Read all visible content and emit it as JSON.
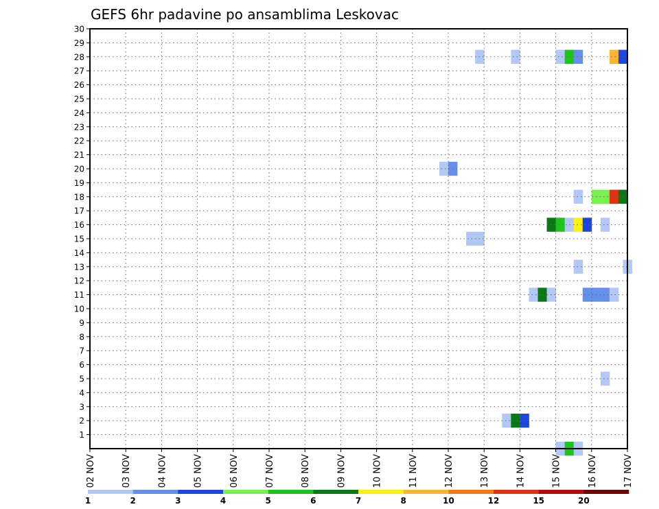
{
  "chart_data": {
    "type": "heatmap",
    "title": "GEFS 6hr padavine po ansamblima Leskovac",
    "xlabel": "",
    "ylabel": "",
    "x_tick_labels": [
      "02 NOV",
      "03 NOV",
      "04 NOV",
      "05 NOV",
      "06 NOV",
      "07 NOV",
      "08 NOV",
      "09 NOV",
      "10 NOV",
      "11 NOV",
      "12 NOV",
      "13 NOV",
      "14 NOV",
      "15 NOV",
      "16 NOV",
      "17 NOV"
    ],
    "y_ticks": [
      1,
      2,
      3,
      4,
      5,
      6,
      7,
      8,
      9,
      10,
      11,
      12,
      13,
      14,
      15,
      16,
      17,
      18,
      19,
      20,
      21,
      22,
      23,
      24,
      25,
      26,
      27,
      28,
      29,
      30
    ],
    "x_range_days": [
      0,
      15
    ],
    "y_range": [
      0,
      30
    ],
    "grid": true,
    "legend_position": "bottom",
    "colorbar": {
      "labels": [
        "1",
        "2",
        "3",
        "4",
        "5",
        "6",
        "7",
        "8",
        "10",
        "12",
        "15",
        "20"
      ],
      "colors": [
        "#b4c8f5",
        "#6490eb",
        "#1e46dc",
        "#78f050",
        "#1ec31e",
        "#0a7814",
        "#faf014",
        "#fab432",
        "#fa7814",
        "#e13214",
        "#b40a0a",
        "#6e0505"
      ]
    },
    "cells": [
      {
        "member": 28,
        "t": 10.75,
        "c": 0
      },
      {
        "member": 28,
        "t": 11.75,
        "c": 0
      },
      {
        "member": 28,
        "t": 13.0,
        "c": 0
      },
      {
        "member": 28,
        "t": 13.25,
        "c": 4
      },
      {
        "member": 28,
        "t": 13.5,
        "c": 1
      },
      {
        "member": 28,
        "t": 14.5,
        "c": 7
      },
      {
        "member": 28,
        "t": 14.75,
        "c": 2
      },
      {
        "member": 20,
        "t": 9.75,
        "c": 0
      },
      {
        "member": 20,
        "t": 10.0,
        "c": 1
      },
      {
        "member": 18,
        "t": 13.5,
        "c": 0
      },
      {
        "member": 18,
        "t": 14.0,
        "c": 3
      },
      {
        "member": 18,
        "t": 14.25,
        "c": 3
      },
      {
        "member": 18,
        "t": 14.5,
        "c": 9
      },
      {
        "member": 18,
        "t": 14.75,
        "c": 5
      },
      {
        "member": 16,
        "t": 12.75,
        "c": 5
      },
      {
        "member": 16,
        "t": 13.0,
        "c": 4
      },
      {
        "member": 16,
        "t": 13.25,
        "c": 0
      },
      {
        "member": 16,
        "t": 13.5,
        "c": 6
      },
      {
        "member": 16,
        "t": 13.75,
        "c": 2
      },
      {
        "member": 16,
        "t": 14.25,
        "c": 0
      },
      {
        "member": 15,
        "t": 10.5,
        "c": 0
      },
      {
        "member": 15,
        "t": 10.75,
        "c": 0
      },
      {
        "member": 13,
        "t": 13.5,
        "c": 0
      },
      {
        "member": 13,
        "t": 14.875,
        "c": 0
      },
      {
        "member": 11,
        "t": 12.25,
        "c": 0
      },
      {
        "member": 11,
        "t": 12.5,
        "c": 5
      },
      {
        "member": 11,
        "t": 12.75,
        "c": 0
      },
      {
        "member": 11,
        "t": 13.75,
        "c": 1
      },
      {
        "member": 11,
        "t": 14.0,
        "c": 1
      },
      {
        "member": 11,
        "t": 14.25,
        "c": 1
      },
      {
        "member": 11,
        "t": 14.5,
        "c": 0
      },
      {
        "member": 5,
        "t": 14.25,
        "c": 0
      },
      {
        "member": 2,
        "t": 11.5,
        "c": 0
      },
      {
        "member": 2,
        "t": 11.75,
        "c": 5
      },
      {
        "member": 2,
        "t": 12.0,
        "c": 2
      },
      {
        "member": 0,
        "t": 13.0,
        "c": 0
      },
      {
        "member": 0,
        "t": 13.25,
        "c": 4
      },
      {
        "member": 0,
        "t": 13.5,
        "c": 0
      }
    ]
  }
}
